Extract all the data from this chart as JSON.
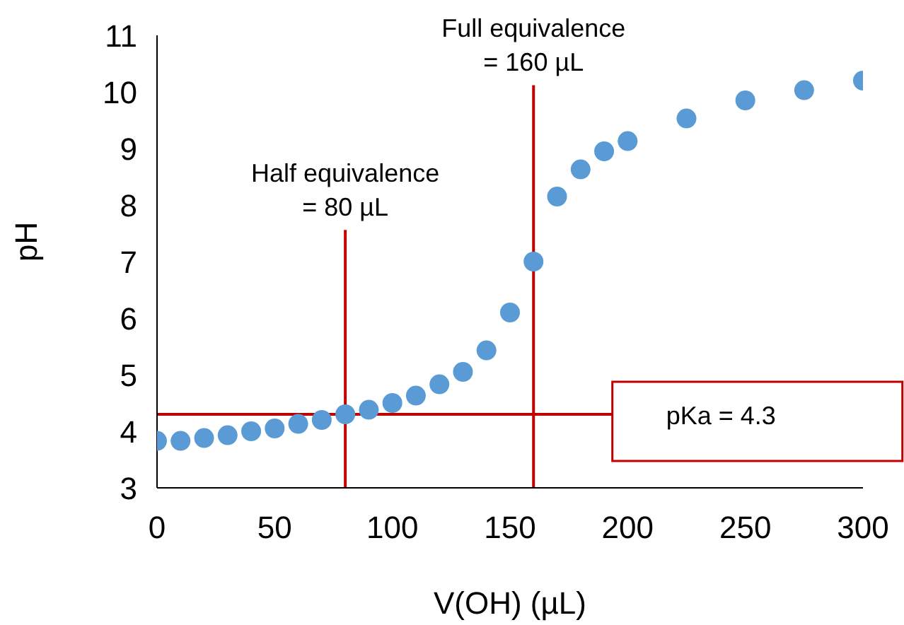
{
  "chart_data": {
    "type": "scatter",
    "xlabel": "V(OH) (µL)",
    "ylabel": "pH",
    "x": [
      0,
      10,
      20,
      30,
      40,
      50,
      60,
      70,
      80,
      90,
      100,
      110,
      120,
      130,
      140,
      150,
      160,
      170,
      180,
      190,
      200,
      225,
      250,
      275,
      300
    ],
    "series": [
      {
        "color": "#5b9bd5",
        "values": [
          3.83,
          3.83,
          3.88,
          3.93,
          4.0,
          4.05,
          4.13,
          4.2,
          4.3,
          4.38,
          4.5,
          4.63,
          4.83,
          5.05,
          5.43,
          6.1,
          7.0,
          8.15,
          8.63,
          8.95,
          9.13,
          9.53,
          9.85,
          10.03,
          10.2
        ]
      }
    ],
    "marker": "circle",
    "xlim": [
      0,
      300
    ],
    "xticks": [
      0,
      50,
      100,
      150,
      200,
      250,
      300
    ],
    "ylim": [
      3,
      11
    ],
    "yticks": [
      3,
      4,
      5,
      6,
      7,
      8,
      9,
      10,
      11
    ],
    "grid": false,
    "legend": false,
    "ref_lines": [
      {
        "axis": "x",
        "value": 80,
        "label": "Half equivalence\n= 80 µL",
        "color": "#c00000"
      },
      {
        "axis": "x",
        "value": 160,
        "label": "Full equivalence\n= 160 µL",
        "color": "#c00000"
      },
      {
        "axis": "y",
        "value": 4.3,
        "label": "pKa = 4.3",
        "color": "#c00000"
      }
    ]
  }
}
